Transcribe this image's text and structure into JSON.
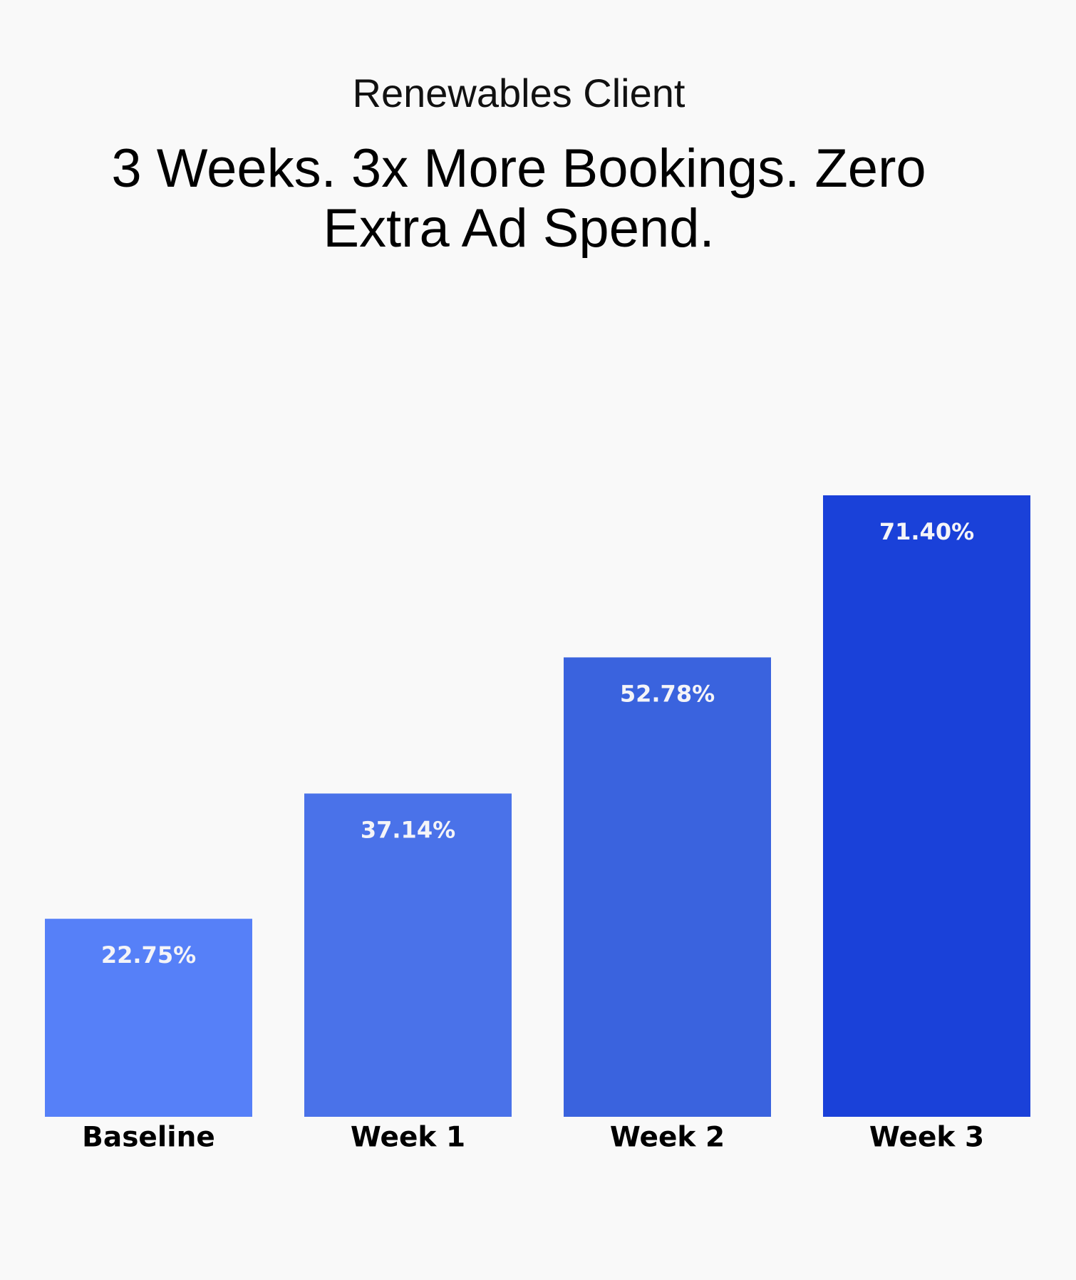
{
  "chart_data": {
    "type": "bar",
    "subtitle": "Renewables Client",
    "title": "3 Weeks. 3x More Bookings. Zero Extra Ad Spend.",
    "categories": [
      "Baseline",
      "Week 1",
      "Week 2",
      "Week 3"
    ],
    "values": [
      22.75,
      37.14,
      52.78,
      71.4
    ],
    "value_labels": [
      "22.75%",
      "37.14%",
      "52.78%",
      "71.40%"
    ],
    "colors": [
      "#5680f8",
      "#4a72e9",
      "#3a63de",
      "#1a41d9"
    ]
  }
}
